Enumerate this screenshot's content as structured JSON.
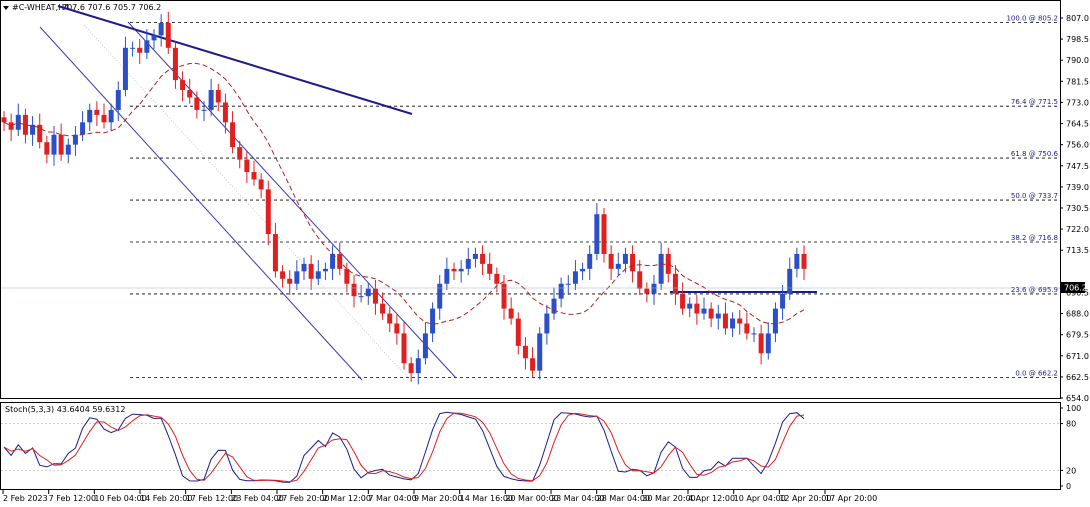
{
  "header": {
    "symbol_text": "#C-WHEAT,H4",
    "ohlc_text": "707.6 707.6 705.7 706.2"
  },
  "stoch_header": "Stoch(5,3,3) 43.6404 59.6312",
  "current_price_label": "706.2",
  "colors": {
    "bull": "#2a4fc9",
    "bear": "#e02020",
    "ma": "#b22222",
    "trend": "#1c1c8c",
    "fib": "#000000",
    "stoch_k": "#1c1c8c",
    "stoch_d": "#e02020"
  },
  "chart_data": {
    "type": "candlestick",
    "price_axis": {
      "ticks": [
        "807.0",
        "798.5",
        "790.0",
        "781.5",
        "773.0",
        "764.5",
        "756.0",
        "747.5",
        "739.0",
        "730.5",
        "722.0",
        "713.5",
        "696.5",
        "688.0",
        "679.5",
        "671.0",
        "662.5",
        "654.0"
      ],
      "range": [
        654.0,
        807.0
      ]
    },
    "stoch_axis": {
      "ticks": [
        "100",
        "80",
        "20",
        "0"
      ],
      "range": [
        0,
        100
      ],
      "levels": [
        80,
        20
      ]
    },
    "x_tick_labels": [
      "2 Feb 2023",
      "7 Feb 12:00",
      "10 Feb 04:00",
      "14 Feb 20:00",
      "17 Feb 12:00",
      "23 Feb 04:00",
      "27 Feb 20:00",
      "2 Mar 12:00",
      "7 Mar 04:00",
      "9 Mar 20:00",
      "14 Mar 16:00",
      "20 Mar 00:00",
      "23 Mar 04:00",
      "28 Mar 04:00",
      "30 Mar 20:00",
      "4 Apr 12:00",
      "10 Apr 04:00",
      "12 Apr 20:00",
      "17 Apr 20:00"
    ],
    "fib_levels": [
      {
        "label": "100.0 @ 805.2",
        "price": 805.2
      },
      {
        "label": "76.4 @ 771.5",
        "price": 771.5
      },
      {
        "label": "61.8 @ 750.6",
        "price": 750.6
      },
      {
        "label": "50.0 @ 733.7",
        "price": 733.7
      },
      {
        "label": "38.2 @ 716.8",
        "price": 716.8
      },
      {
        "label": "23.6 @ 695.9",
        "price": 695.9
      },
      {
        "label": "0.0 @ 662.2",
        "price": 662.2
      }
    ],
    "last_price": 706.2,
    "closes": [
      765,
      762,
      768,
      760,
      764,
      757,
      752,
      760,
      752,
      756,
      760,
      765,
      770,
      768,
      765,
      770,
      778,
      795,
      795,
      793,
      798,
      800,
      805,
      795,
      782,
      778,
      775,
      770,
      770,
      778,
      773,
      765,
      755,
      750,
      745,
      742,
      738,
      720,
      705,
      702,
      700,
      705,
      708,
      702,
      705,
      706,
      712,
      706,
      700,
      695,
      695,
      698,
      692,
      688,
      684,
      680,
      668,
      664,
      670,
      680,
      690,
      700,
      706,
      705,
      706,
      710,
      712,
      708,
      704,
      700,
      690,
      686,
      675,
      670,
      665,
      680,
      688,
      694,
      700,
      700,
      705,
      706,
      712,
      728,
      712,
      706,
      708,
      712,
      705,
      698,
      696,
      700,
      712,
      704,
      696,
      690,
      692,
      688,
      690,
      686,
      688,
      682,
      686,
      684,
      680,
      680,
      672,
      680,
      690,
      696,
      706,
      712,
      706
    ]
  }
}
